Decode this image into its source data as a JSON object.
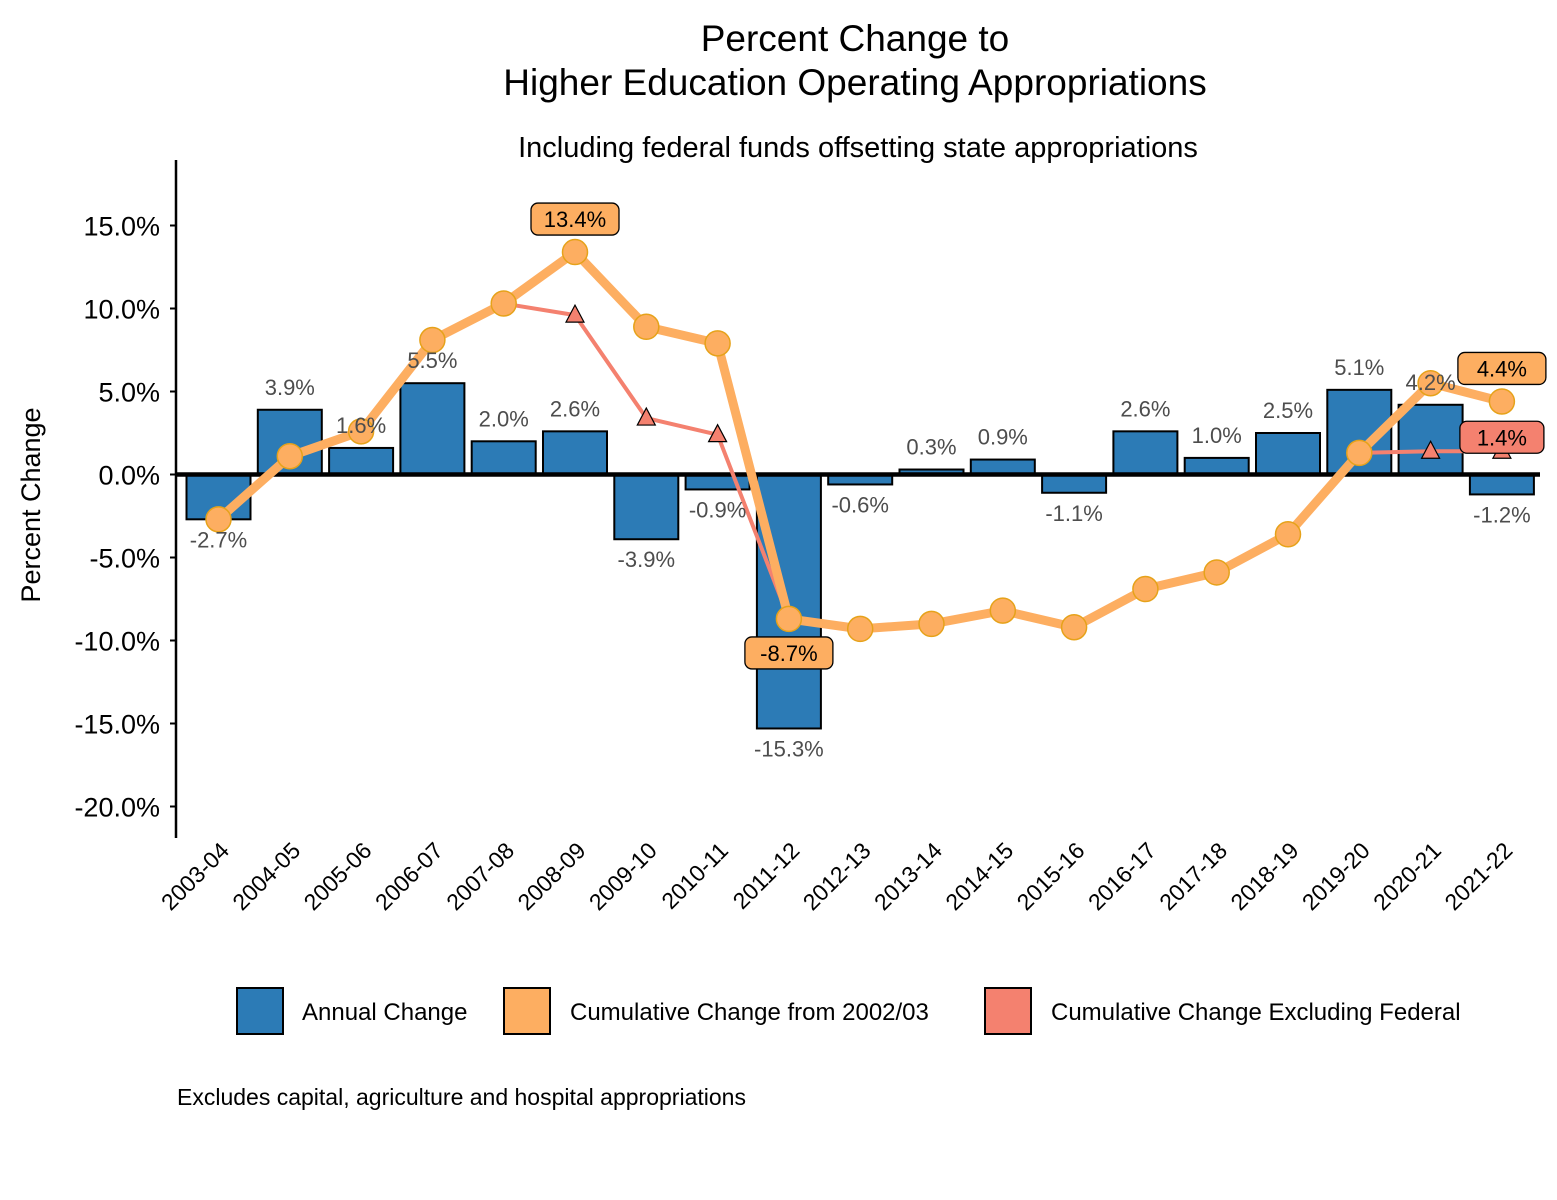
{
  "chart_data": {
    "type": "bar",
    "title_lines": [
      "Percent Change to",
      "Higher Education Operating Appropriations"
    ],
    "subtitle": "Including federal funds offsetting state appropriations",
    "xlabel": "",
    "ylabel": "Percent Change",
    "ylim": [
      -21.5,
      18.5
    ],
    "yticks": [
      15,
      10,
      5,
      0,
      -5,
      -10,
      -15,
      -20
    ],
    "ytick_labels": [
      "15.0%",
      "10.0%",
      "5.0%",
      "0.0%",
      "-5.0%",
      "-10.0%",
      "-15.0%",
      "-20.0%"
    ],
    "grid": false,
    "legend_position": "bottom",
    "categories": [
      "2003-04",
      "2004-05",
      "2005-06",
      "2006-07",
      "2007-08",
      "2008-09",
      "2009-10",
      "2010-11",
      "2011-12",
      "2012-13",
      "2013-14",
      "2014-15",
      "2015-16",
      "2016-17",
      "2017-18",
      "2018-19",
      "2019-20",
      "2020-21",
      "2021-22"
    ],
    "series": [
      {
        "name": "Annual Change",
        "type": "bar",
        "color": "#2c7bb6",
        "values": [
          -2.7,
          3.9,
          1.6,
          5.5,
          2.0,
          2.6,
          -3.9,
          -0.9,
          -15.3,
          -0.6,
          0.3,
          0.9,
          -1.1,
          2.6,
          1.0,
          2.5,
          5.1,
          4.2,
          -1.2
        ],
        "labels": [
          "-2.7%",
          "3.9%",
          "1.6%",
          "5.5%",
          "2.0%",
          "2.6%",
          "-3.9%",
          "-0.9%",
          "-15.3%",
          "-0.6%",
          "0.3%",
          "0.9%",
          "-1.1%",
          "2.6%",
          "1.0%",
          "2.5%",
          "5.1%",
          "4.2%",
          "-1.2%"
        ]
      },
      {
        "name": "Cumulative Change from 2002/03",
        "type": "line",
        "color": "#fdae61",
        "values": [
          -2.7,
          1.1,
          2.6,
          8.1,
          10.3,
          13.4,
          8.9,
          7.9,
          -8.7,
          -9.3,
          -9.0,
          -8.2,
          -9.2,
          -6.9,
          -5.9,
          -3.6,
          1.3,
          5.5,
          4.4
        ],
        "callouts": [
          {
            "index": 5,
            "label": "13.4%"
          },
          {
            "index": 8,
            "label": "-8.7%"
          },
          {
            "index": 18,
            "label": "4.4%"
          }
        ]
      },
      {
        "name": "Cumulative Change Excluding Federal",
        "type": "line",
        "color": "#f4816f",
        "x": [
          "2007-08",
          "2008-09",
          "2009-10",
          "2010-11",
          "2011-12"
        ],
        "values": [
          10.3,
          9.6,
          3.4,
          2.4,
          -8.7
        ],
        "triangle_markers": [
          "2008-09",
          "2009-10",
          "2010-11"
        ],
        "segment2": {
          "x": [
            "2019-20",
            "2020-21",
            "2021-22"
          ],
          "values": [
            1.3,
            1.4,
            1.4
          ],
          "triangle_markers": [
            "2020-21",
            "2021-22"
          ]
        },
        "callouts": [
          {
            "index": 18,
            "label": "1.4%"
          }
        ]
      }
    ],
    "caption": "Excludes capital, agriculture and hospital appropriations"
  }
}
